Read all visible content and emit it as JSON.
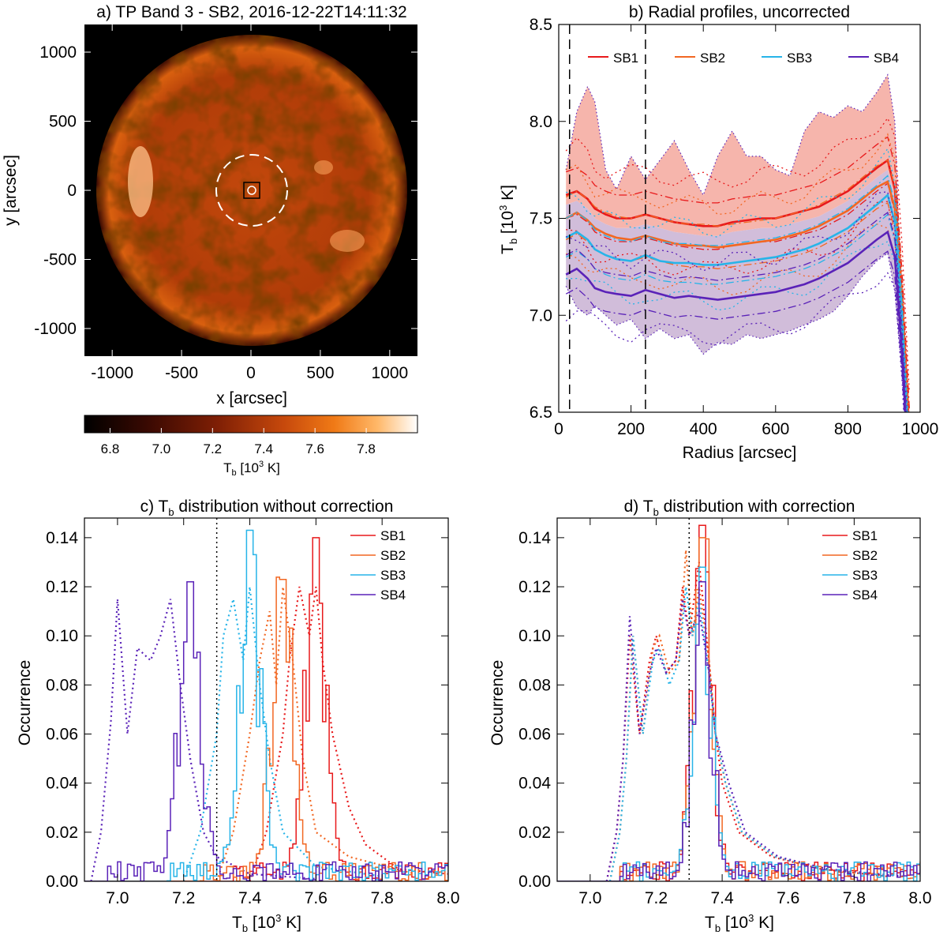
{
  "colors": {
    "SB1": "#e8191b",
    "SB2": "#f26722",
    "SB3": "#27b4e8",
    "SB4": "#5a22b8",
    "band_upper": "#f4a89d",
    "band_lower": "#c9b2d3"
  },
  "chart_data": [
    {
      "type": "heatmap",
      "title": "a) TP Band 3 - SB2, 2016-12-22T14:11:32",
      "xlabel": "x [arcsec]",
      "ylabel": "y [arcsec]",
      "xlim": [
        -1200,
        1200
      ],
      "ylim": [
        -1200,
        1200
      ],
      "x_ticks": [
        "-1000",
        "-500",
        "0",
        "500",
        "1000"
      ],
      "y_ticks": [
        "1000",
        "500",
        "0",
        "-500",
        "-1000"
      ],
      "solar_disk_radius": 970,
      "dashed_circle_radius": 240,
      "inner_circle_radius": 30,
      "center_box_halfwidth": 45,
      "colorbar": {
        "label": "T",
        "label_sub": "b",
        "label_rest": " [10",
        "label_sup": "3",
        "label_end": " K]",
        "range": [
          6.7,
          8.0
        ],
        "ticks": [
          "6.8",
          "7.0",
          "7.2",
          "7.4",
          "7.6",
          "7.8"
        ]
      }
    },
    {
      "type": "line",
      "title": "b) Radial profiles, uncorrected",
      "xlabel": "Radius [arcsec]",
      "ylabel_main": "T",
      "ylabel_sub": "b",
      "ylabel_rest": " [10",
      "ylabel_sup": "3",
      "ylabel_end": " K]",
      "xlim": [
        0,
        1000
      ],
      "ylim": [
        6.5,
        8.5
      ],
      "x_ticks": [
        "0",
        "200",
        "400",
        "600",
        "800",
        "1000"
      ],
      "y_ticks": [
        "6.5",
        "7.0",
        "7.5",
        "8.0",
        "8.5"
      ],
      "vlines": [
        30,
        240
      ],
      "legend": [
        "SB1",
        "SB2",
        "SB3",
        "SB4"
      ],
      "x": [
        20,
        50,
        80,
        100,
        130,
        160,
        200,
        240,
        280,
        320,
        360,
        400,
        440,
        480,
        520,
        560,
        600,
        640,
        680,
        720,
        760,
        800,
        840,
        880,
        910,
        930,
        950,
        970
      ],
      "series": [
        {
          "name": "SB1",
          "values": [
            7.62,
            7.64,
            7.6,
            7.55,
            7.52,
            7.5,
            7.5,
            7.52,
            7.5,
            7.48,
            7.47,
            7.46,
            7.46,
            7.48,
            7.49,
            7.5,
            7.5,
            7.52,
            7.54,
            7.56,
            7.6,
            7.64,
            7.7,
            7.76,
            7.8,
            7.65,
            7.1,
            6.4
          ]
        },
        {
          "name": "SB2",
          "values": [
            7.5,
            7.53,
            7.49,
            7.45,
            7.42,
            7.4,
            7.39,
            7.41,
            7.39,
            7.37,
            7.36,
            7.36,
            7.35,
            7.36,
            7.37,
            7.38,
            7.39,
            7.41,
            7.43,
            7.46,
            7.5,
            7.54,
            7.6,
            7.66,
            7.69,
            7.55,
            7.0,
            6.3
          ]
        },
        {
          "name": "SB3",
          "values": [
            7.4,
            7.43,
            7.39,
            7.34,
            7.31,
            7.29,
            7.28,
            7.31,
            7.28,
            7.27,
            7.27,
            7.26,
            7.26,
            7.27,
            7.28,
            7.29,
            7.3,
            7.32,
            7.34,
            7.37,
            7.41,
            7.45,
            7.51,
            7.57,
            7.62,
            7.48,
            6.95,
            6.2
          ]
        },
        {
          "name": "SB4",
          "values": [
            7.21,
            7.24,
            7.19,
            7.14,
            7.12,
            7.11,
            7.1,
            7.13,
            7.11,
            7.09,
            7.1,
            7.09,
            7.08,
            7.09,
            7.1,
            7.11,
            7.12,
            7.14,
            7.16,
            7.19,
            7.23,
            7.27,
            7.33,
            7.39,
            7.43,
            7.3,
            6.8,
            6.1
          ]
        }
      ],
      "band_upper": [
        7.75,
        8.05,
        8.18,
        8.1,
        7.75,
        7.65,
        7.82,
        7.7,
        7.8,
        7.9,
        7.75,
        7.62,
        7.82,
        7.95,
        7.82,
        7.82,
        7.75,
        7.72,
        7.95,
        8.05,
        8.02,
        8.08,
        8.05,
        8.15,
        8.24,
        8.0,
        7.0,
        6.4
      ],
      "band_lower": [
        7.15,
        7.04,
        7.0,
        7.05,
        7.0,
        6.95,
        6.98,
        6.88,
        6.93,
        6.88,
        6.9,
        6.8,
        6.86,
        6.85,
        6.9,
        6.88,
        6.9,
        6.92,
        6.95,
        6.98,
        7.02,
        7.1,
        7.2,
        7.28,
        7.32,
        7.12,
        6.7,
        6.2
      ]
    },
    {
      "type": "line",
      "title_prefix": "c) T",
      "title_sub": "b",
      "title_rest": " distribution without correction",
      "xlabel_main": "T",
      "xlabel_sub": "b",
      "xlabel_rest": " [10",
      "xlabel_sup": "3",
      "xlabel_end": " K]",
      "ylabel": "Occurrence",
      "xlim": [
        6.9,
        8.0
      ],
      "ylim": [
        0.0,
        0.148
      ],
      "x_ticks": [
        "7.0",
        "7.2",
        "7.4",
        "7.6",
        "7.8",
        "8.0"
      ],
      "y_ticks": [
        "0.00",
        "0.02",
        "0.04",
        "0.06",
        "0.08",
        "0.10",
        "0.12",
        "0.14"
      ],
      "vline": 7.3,
      "legend": [
        "SB1",
        "SB2",
        "SB3",
        "SB4"
      ],
      "series": [
        {
          "name": "SB1",
          "center": 7.6,
          "peak": 0.14,
          "width": 0.035
        },
        {
          "name": "SB2",
          "center": 7.5,
          "peak": 0.123,
          "width": 0.035
        },
        {
          "name": "SB3",
          "center": 7.4,
          "peak": 0.143,
          "width": 0.035
        },
        {
          "name": "SB4",
          "center": 7.22,
          "peak": 0.122,
          "width": 0.035
        }
      ],
      "dotted": [
        {
          "name": "SB1",
          "points": [
            [
              7.4,
              0.0
            ],
            [
              7.45,
              0.02
            ],
            [
              7.5,
              0.06
            ],
            [
              7.52,
              0.09
            ],
            [
              7.55,
              0.12
            ],
            [
              7.58,
              0.1
            ],
            [
              7.6,
              0.12
            ],
            [
              7.62,
              0.09
            ],
            [
              7.65,
              0.06
            ],
            [
              7.7,
              0.03
            ],
            [
              7.75,
              0.015
            ],
            [
              7.85,
              0.005
            ],
            [
              8.0,
              0.003
            ]
          ]
        },
        {
          "name": "SB2",
          "points": [
            [
              7.3,
              0.0
            ],
            [
              7.35,
              0.02
            ],
            [
              7.4,
              0.06
            ],
            [
              7.43,
              0.09
            ],
            [
              7.46,
              0.11
            ],
            [
              7.48,
              0.08
            ],
            [
              7.5,
              0.12
            ],
            [
              7.53,
              0.09
            ],
            [
              7.56,
              0.05
            ],
            [
              7.6,
              0.02
            ],
            [
              7.7,
              0.01
            ],
            [
              7.9,
              0.003
            ]
          ]
        },
        {
          "name": "SB3",
          "points": [
            [
              7.2,
              0.0
            ],
            [
              7.25,
              0.02
            ],
            [
              7.3,
              0.06
            ],
            [
              7.32,
              0.1
            ],
            [
              7.35,
              0.115
            ],
            [
              7.38,
              0.09
            ],
            [
              7.4,
              0.12
            ],
            [
              7.43,
              0.08
            ],
            [
              7.46,
              0.05
            ],
            [
              7.5,
              0.02
            ],
            [
              7.6,
              0.006
            ],
            [
              7.8,
              0.002
            ]
          ]
        },
        {
          "name": "SB4",
          "points": [
            [
              6.92,
              0.0
            ],
            [
              6.95,
              0.02
            ],
            [
              6.98,
              0.065
            ],
            [
              7.0,
              0.115
            ],
            [
              7.03,
              0.06
            ],
            [
              7.06,
              0.095
            ],
            [
              7.1,
              0.09
            ],
            [
              7.13,
              0.1
            ],
            [
              7.16,
              0.115
            ],
            [
              7.19,
              0.08
            ],
            [
              7.22,
              0.05
            ],
            [
              7.26,
              0.02
            ],
            [
              7.3,
              0.01
            ],
            [
              7.4,
              0.003
            ],
            [
              7.6,
              0.001
            ]
          ]
        }
      ]
    },
    {
      "type": "line",
      "title_prefix": "d) T",
      "title_sub": "b",
      "title_rest": " distribution with correction",
      "xlabel_main": "T",
      "xlabel_sub": "b",
      "xlabel_rest": " [10",
      "xlabel_sup": "3",
      "xlabel_end": " K]",
      "ylabel": "Occurrence",
      "xlim": [
        6.9,
        8.0
      ],
      "ylim": [
        0.0,
        0.148
      ],
      "x_ticks": [
        "7.0",
        "7.2",
        "7.4",
        "7.6",
        "7.8",
        "8.0"
      ],
      "y_ticks": [
        "0.00",
        "0.02",
        "0.04",
        "0.06",
        "0.08",
        "0.10",
        "0.12",
        "0.14"
      ],
      "vline": 7.3,
      "legend": [
        "SB1",
        "SB2",
        "SB3",
        "SB4"
      ],
      "series": [
        {
          "name": "SB1",
          "center": 7.34,
          "peak": 0.145,
          "width": 0.03
        },
        {
          "name": "SB2",
          "center": 7.34,
          "peak": 0.14,
          "width": 0.03
        },
        {
          "name": "SB3",
          "center": 7.34,
          "peak": 0.128,
          "width": 0.03
        },
        {
          "name": "SB4",
          "center": 7.34,
          "peak": 0.122,
          "width": 0.03
        }
      ],
      "dotted": [
        {
          "name": "SB1",
          "points": [
            [
              7.05,
              0.0
            ],
            [
              7.08,
              0.02
            ],
            [
              7.1,
              0.05
            ],
            [
              7.12,
              0.1
            ],
            [
              7.15,
              0.06
            ],
            [
              7.18,
              0.09
            ],
            [
              7.2,
              0.1
            ],
            [
              7.23,
              0.085
            ],
            [
              7.26,
              0.09
            ],
            [
              7.28,
              0.12
            ],
            [
              7.3,
              0.1
            ],
            [
              7.33,
              0.13
            ],
            [
              7.36,
              0.09
            ],
            [
              7.38,
              0.06
            ],
            [
              7.4,
              0.04
            ],
            [
              7.45,
              0.02
            ],
            [
              7.55,
              0.01
            ],
            [
              7.7,
              0.005
            ],
            [
              7.9,
              0.002
            ]
          ]
        },
        {
          "name": "SB2",
          "points": [
            [
              7.06,
              0.0
            ],
            [
              7.09,
              0.02
            ],
            [
              7.11,
              0.05
            ],
            [
              7.13,
              0.1
            ],
            [
              7.16,
              0.06
            ],
            [
              7.19,
              0.095
            ],
            [
              7.21,
              0.1
            ],
            [
              7.24,
              0.085
            ],
            [
              7.27,
              0.09
            ],
            [
              7.29,
              0.135
            ],
            [
              7.31,
              0.1
            ],
            [
              7.33,
              0.12
            ],
            [
              7.36,
              0.09
            ],
            [
              7.38,
              0.06
            ],
            [
              7.41,
              0.04
            ],
            [
              7.46,
              0.02
            ],
            [
              7.56,
              0.01
            ],
            [
              7.7,
              0.005
            ],
            [
              7.9,
              0.002
            ]
          ]
        },
        {
          "name": "SB3",
          "points": [
            [
              7.06,
              0.0
            ],
            [
              7.09,
              0.02
            ],
            [
              7.11,
              0.05
            ],
            [
              7.13,
              0.1
            ],
            [
              7.16,
              0.06
            ],
            [
              7.19,
              0.09
            ],
            [
              7.21,
              0.095
            ],
            [
              7.24,
              0.08
            ],
            [
              7.27,
              0.09
            ],
            [
              7.29,
              0.12
            ],
            [
              7.31,
              0.1
            ],
            [
              7.33,
              0.115
            ],
            [
              7.36,
              0.085
            ],
            [
              7.38,
              0.06
            ],
            [
              7.41,
              0.04
            ],
            [
              7.46,
              0.02
            ],
            [
              7.56,
              0.01
            ],
            [
              7.7,
              0.005
            ],
            [
              7.9,
              0.002
            ]
          ]
        },
        {
          "name": "SB4",
          "points": [
            [
              7.05,
              0.0
            ],
            [
              7.08,
              0.02
            ],
            [
              7.1,
              0.05
            ],
            [
              7.12,
              0.108
            ],
            [
              7.15,
              0.06
            ],
            [
              7.18,
              0.085
            ],
            [
              7.2,
              0.095
            ],
            [
              7.23,
              0.085
            ],
            [
              7.26,
              0.09
            ],
            [
              7.28,
              0.115
            ],
            [
              7.3,
              0.1
            ],
            [
              7.33,
              0.11
            ],
            [
              7.36,
              0.085
            ],
            [
              7.38,
              0.06
            ],
            [
              7.42,
              0.04
            ],
            [
              7.47,
              0.02
            ],
            [
              7.57,
              0.01
            ],
            [
              7.72,
              0.005
            ],
            [
              7.95,
              0.002
            ]
          ]
        }
      ]
    }
  ]
}
